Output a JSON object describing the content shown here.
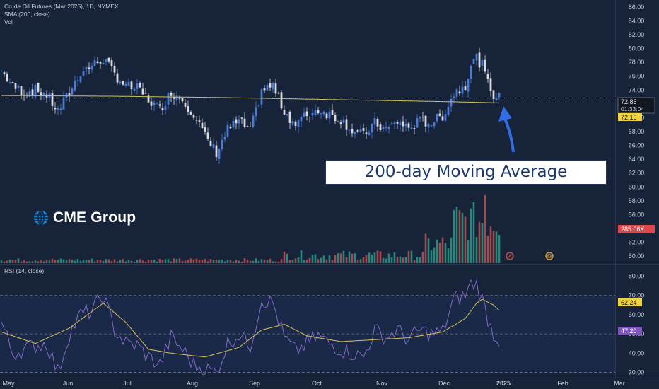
{
  "header": {
    "title": "Crude Oil Futures (Mar 2025), 1D, NYMEX",
    "sma_label": "SMA (200, close)",
    "vol_label": "Vol",
    "rsi_label": "RSI (14, close)"
  },
  "logo": {
    "text": "CME Group"
  },
  "annotation": {
    "text": "200-day Moving Average"
  },
  "colors": {
    "background": "#172339",
    "up": "#4a7bd9",
    "down": "#d9dbe0",
    "sma": "#c9c25f",
    "rsi": "#8a6fd1",
    "rsi_ma": "#d8c05a",
    "vol_up": "#2a9a8a",
    "vol_down": "#c2504f",
    "arrow": "#2f6ee6"
  },
  "chart_data": [
    {
      "type": "candlestick",
      "title": "Crude Oil Futures (Mar 2025), 1D, NYMEX",
      "x_ticks": [
        "May",
        "Jun",
        "Jul",
        "Aug",
        "Sep",
        "Oct",
        "Nov",
        "Dec",
        "2025",
        "Feb",
        "Mar"
      ],
      "y_ticks": [
        "86.00",
        "84.00",
        "82.00",
        "80.00",
        "78.00",
        "76.00",
        "74.00",
        "72.00",
        "70.00",
        "68.00",
        "66.00",
        "64.00",
        "62.00",
        "60.00",
        "58.00",
        "56.00",
        "54.00",
        "52.00",
        "50.00"
      ],
      "ylim": [
        49,
        87
      ],
      "last_price": "72.85",
      "countdown": "01:33:04",
      "sma_value": "72.15",
      "sma_period": 200,
      "close_points": [
        [
          0,
          76.8
        ],
        [
          4,
          74.5
        ],
        [
          8,
          73.7
        ],
        [
          12,
          74.0
        ],
        [
          16,
          73.3
        ],
        [
          20,
          70.9
        ],
        [
          24,
          73.6
        ],
        [
          28,
          76.6
        ],
        [
          32,
          77.5
        ],
        [
          36,
          78.5
        ],
        [
          40,
          76.3
        ],
        [
          44,
          74.5
        ],
        [
          48,
          74.2
        ],
        [
          52,
          72.6
        ],
        [
          56,
          71.2
        ],
        [
          60,
          73.7
        ],
        [
          64,
          72.7
        ],
        [
          68,
          70.6
        ],
        [
          72,
          67.3
        ],
        [
          76,
          65.0
        ],
        [
          80,
          68.3
        ],
        [
          84,
          69.5
        ],
        [
          88,
          68.0
        ],
        [
          92,
          74.0
        ],
        [
          96,
          74.6
        ],
        [
          100,
          71.0
        ],
        [
          104,
          69.0
        ],
        [
          108,
          70.4
        ],
        [
          112,
          71.2
        ],
        [
          116,
          70.5
        ],
        [
          120,
          69.8
        ],
        [
          124,
          68.2
        ],
        [
          128,
          67.4
        ],
        [
          132,
          69.2
        ],
        [
          136,
          68.3
        ],
        [
          140,
          69.4
        ],
        [
          144,
          68.5
        ],
        [
          148,
          69.5
        ],
        [
          152,
          69.3
        ],
        [
          156,
          70.3
        ],
        [
          160,
          73.5
        ],
        [
          164,
          74.8
        ],
        [
          166,
          77.8
        ],
        [
          168,
          78.6
        ],
        [
          170,
          77.5
        ],
        [
          172,
          75.0
        ],
        [
          174,
          73.4
        ],
        [
          176,
          72.85
        ]
      ],
      "sma_points": [
        [
          0,
          73.2
        ],
        [
          40,
          73.1
        ],
        [
          80,
          72.9
        ],
        [
          120,
          72.6
        ],
        [
          160,
          72.3
        ],
        [
          176,
          72.15
        ]
      ],
      "volume": {
        "last_label": "285.06K"
      }
    },
    {
      "type": "line",
      "title": "RSI (14, close)",
      "y_ticks": [
        "80.00",
        "70.00",
        "60.00",
        "50.00",
        "40.00",
        "30.00"
      ],
      "ylim": [
        28,
        82
      ],
      "bands": [
        30,
        50,
        70
      ],
      "rsi_value": "47.20",
      "rsi_ma_value": "62.24",
      "rsi_points": [
        [
          0,
          56
        ],
        [
          4,
          40
        ],
        [
          8,
          42
        ],
        [
          12,
          44
        ],
        [
          16,
          45
        ],
        [
          20,
          30
        ],
        [
          24,
          50
        ],
        [
          28,
          60
        ],
        [
          32,
          62
        ],
        [
          36,
          70
        ],
        [
          40,
          52
        ],
        [
          44,
          45
        ],
        [
          48,
          44
        ],
        [
          52,
          38
        ],
        [
          56,
          34
        ],
        [
          60,
          48
        ],
        [
          64,
          42
        ],
        [
          68,
          34
        ],
        [
          72,
          32
        ],
        [
          76,
          30
        ],
        [
          80,
          45
        ],
        [
          84,
          50
        ],
        [
          88,
          44
        ],
        [
          92,
          68
        ],
        [
          96,
          66
        ],
        [
          100,
          48
        ],
        [
          104,
          41
        ],
        [
          108,
          45
        ],
        [
          112,
          49
        ],
        [
          116,
          45
        ],
        [
          120,
          42
        ],
        [
          124,
          40
        ],
        [
          128,
          38
        ],
        [
          132,
          52
        ],
        [
          136,
          48
        ],
        [
          140,
          52
        ],
        [
          144,
          47
        ],
        [
          148,
          52
        ],
        [
          152,
          50
        ],
        [
          156,
          51
        ],
        [
          160,
          68
        ],
        [
          164,
          70
        ],
        [
          166,
          76
        ],
        [
          168,
          76
        ],
        [
          170,
          68
        ],
        [
          172,
          58
        ],
        [
          174,
          50
        ],
        [
          176,
          47.2
        ]
      ],
      "rsi_ma_points": [
        [
          0,
          51
        ],
        [
          12,
          45
        ],
        [
          24,
          53
        ],
        [
          36,
          66
        ],
        [
          44,
          56
        ],
        [
          52,
          42
        ],
        [
          60,
          40
        ],
        [
          72,
          38
        ],
        [
          84,
          43
        ],
        [
          92,
          52
        ],
        [
          100,
          55
        ],
        [
          108,
          49
        ],
        [
          120,
          46
        ],
        [
          132,
          47
        ],
        [
          144,
          48
        ],
        [
          156,
          51
        ],
        [
          164,
          58
        ],
        [
          168,
          66
        ],
        [
          170,
          68
        ],
        [
          174,
          65
        ],
        [
          176,
          62.24
        ]
      ]
    }
  ]
}
